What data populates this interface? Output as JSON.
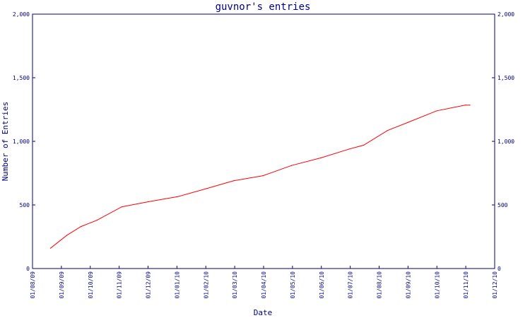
{
  "chart_data": {
    "type": "line",
    "title": "guvnor's entries",
    "xlabel": "Date",
    "ylabel": "Number of Entries",
    "x_ticks": [
      "01/08/09",
      "01/09/09",
      "01/10/09",
      "01/11/09",
      "01/12/09",
      "01/01/10",
      "01/02/10",
      "01/03/10",
      "01/04/10",
      "01/05/10",
      "01/06/10",
      "01/07/10",
      "01/08/10",
      "01/09/10",
      "01/10/10",
      "01/11/10",
      "01/12/10"
    ],
    "y_ticks": [
      "0",
      "500",
      "1,000",
      "1,500",
      "2,000"
    ],
    "y_ticks_right": [
      "0",
      "500",
      "1,000",
      "1,500",
      "2,000"
    ],
    "ylim": [
      0,
      2000
    ],
    "xlim": [
      "2009-08-01",
      "2010-12-01"
    ],
    "grid": false,
    "series": [
      {
        "color": "#ff0000",
        "x": [
          "2009-08-20",
          "2009-09-06",
          "2009-09-21",
          "2009-10-08",
          "2009-11-03",
          "2009-12-01",
          "2010-01-01",
          "2010-02-01",
          "2010-03-01",
          "2010-04-01",
          "2010-05-01",
          "2010-06-01",
          "2010-07-01",
          "2010-07-16",
          "2010-08-10",
          "2010-09-01",
          "2010-10-01",
          "2010-10-31",
          "2010-11-05"
        ],
        "values": [
          160,
          260,
          330,
          380,
          485,
          525,
          565,
          630,
          690,
          730,
          810,
          870,
          940,
          970,
          1085,
          1150,
          1240,
          1285,
          1285
        ]
      }
    ],
    "colors": {
      "axis": "#000080",
      "line": "#ff0000"
    }
  }
}
